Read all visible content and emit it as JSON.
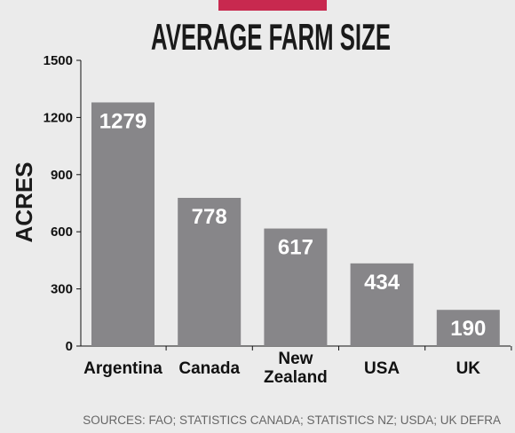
{
  "colors": {
    "background": "#ebebeb",
    "bar": "#878689",
    "accent": "#c8294f",
    "axis": "#111111",
    "data_label": "#ffffff"
  },
  "chart_data": {
    "type": "bar",
    "title": "AVERAGE FARM SIZE",
    "ylabel": "ACRES",
    "xlabel": "",
    "categories": [
      [
        "Argentina"
      ],
      [
        "Canada"
      ],
      [
        "New",
        "Zealand"
      ],
      [
        "USA"
      ],
      [
        "UK"
      ]
    ],
    "values": [
      1279,
      778,
      617,
      434,
      190
    ],
    "data_labels": [
      "1279",
      "778",
      "617",
      "434",
      "190"
    ],
    "ylim": [
      0,
      1500
    ],
    "yticks": [
      0,
      300,
      600,
      900,
      1200,
      1500
    ],
    "ytick_labels": [
      "0",
      "300",
      "600",
      "900",
      "1200",
      "1500"
    ],
    "grid": false,
    "legend": "none",
    "source": "SOURCES: FAO; STATISTICS CANADA; STATISTICS NZ; USDA; UK DEFRA"
  }
}
